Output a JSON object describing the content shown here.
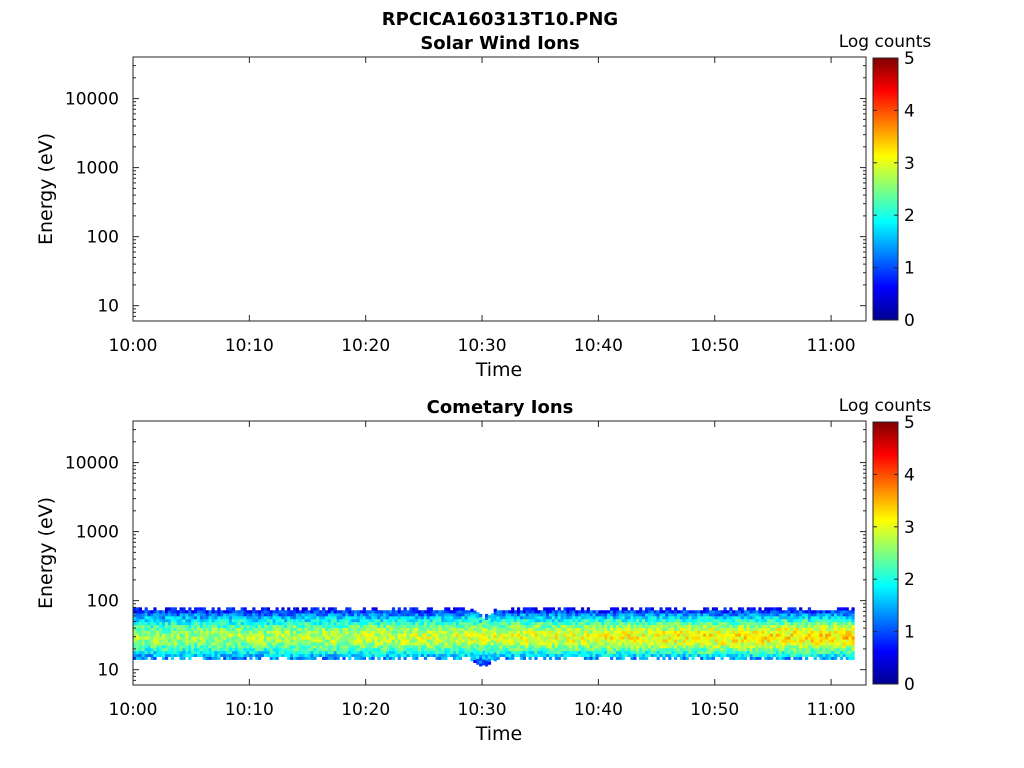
{
  "figure": {
    "title": "RPCICA160313T10.PNG"
  },
  "colorbar": {
    "label": "Log counts",
    "range": [
      0,
      5
    ],
    "ticks": [
      "0",
      "1",
      "2",
      "3",
      "4",
      "5"
    ],
    "colormap": "jet"
  },
  "chart_data": [
    {
      "type": "heatmap",
      "title": "Solar Wind Ions",
      "xlabel": "Time",
      "ylabel": "Energy (eV)",
      "xlim": [
        "10:00",
        "11:03"
      ],
      "ylim": [
        6,
        40000
      ],
      "yscale": "log",
      "xticks": [
        "10:00",
        "10:10",
        "10:20",
        "10:30",
        "10:40",
        "10:50",
        "11:00"
      ],
      "yticks": [
        {
          "value": 10,
          "label": "10"
        },
        {
          "value": 100,
          "label": "100"
        },
        {
          "value": 1000,
          "label": "1000"
        },
        {
          "value": 10000,
          "label": "10000"
        }
      ],
      "grid": false,
      "data": []
    },
    {
      "type": "heatmap",
      "title": "Cometary Ions",
      "xlabel": "Time",
      "ylabel": "Energy (eV)",
      "xlim": [
        "10:00",
        "11:03"
      ],
      "ylim": [
        6,
        40000
      ],
      "yscale": "log",
      "xticks": [
        "10:00",
        "10:10",
        "10:20",
        "10:30",
        "10:40",
        "10:50",
        "11:00"
      ],
      "yticks": [
        {
          "value": 10,
          "label": "10"
        },
        {
          "value": 100,
          "label": "100"
        },
        {
          "value": 1000,
          "label": "1000"
        },
        {
          "value": 10000,
          "label": "10000"
        }
      ],
      "grid": false,
      "band": {
        "time_start": "10:00",
        "time_end": "11:02",
        "energy_min": 14,
        "energy_max": 80,
        "peak_energy": 30,
        "peak_log_counts_start": 2.6,
        "peak_log_counts_end": 3.3,
        "edge_log_counts": 0.8
      },
      "features": [
        {
          "time": "10:30",
          "energy": 10,
          "note": "dip"
        }
      ]
    }
  ]
}
